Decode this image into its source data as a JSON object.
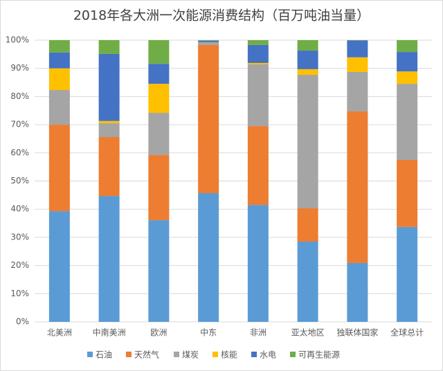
{
  "chart_data": {
    "type": "stacked-bar-100",
    "title": "2018年各大洲一次能源消费结构（百万吨油当量）",
    "categories": [
      "北美洲",
      "中南美洲",
      "欧洲",
      "中东",
      "非洲",
      "亚太地区",
      "独联体国家",
      "全球总计"
    ],
    "series": [
      {
        "name": "石油",
        "color": "#5b9bd5",
        "values": [
          39.3,
          44.7,
          36.1,
          45.7,
          41.5,
          28.5,
          20.9,
          33.7
        ]
      },
      {
        "name": "天然气",
        "color": "#ed7d31",
        "values": [
          30.7,
          20.9,
          23.1,
          52.6,
          28.0,
          11.8,
          53.8,
          23.8
        ]
      },
      {
        "name": "煤炭",
        "color": "#a5a5a5",
        "values": [
          12.3,
          4.9,
          15.0,
          1.0,
          21.9,
          47.4,
          14.0,
          27.0
        ]
      },
      {
        "name": "核能",
        "color": "#ffc000",
        "values": [
          7.7,
          0.8,
          10.3,
          0,
          0.5,
          2.0,
          5.2,
          4.4
        ]
      },
      {
        "name": "水电",
        "color": "#4472c4",
        "values": [
          5.6,
          23.8,
          7.1,
          0.5,
          6.4,
          6.6,
          6.0,
          6.9
        ]
      },
      {
        "name": "可再生能源",
        "color": "#70ad47",
        "values": [
          4.4,
          4.9,
          8.4,
          0.2,
          1.7,
          3.7,
          0.1,
          4.2
        ]
      }
    ],
    "ylim": [
      0,
      100
    ],
    "yticks": [
      {
        "value": 0,
        "label": "0%"
      },
      {
        "value": 10,
        "label": "10%"
      },
      {
        "value": 20,
        "label": "20%"
      },
      {
        "value": 30,
        "label": "30%"
      },
      {
        "value": 40,
        "label": "40%"
      },
      {
        "value": 50,
        "label": "50%"
      },
      {
        "value": 60,
        "label": "60%"
      },
      {
        "value": 70,
        "label": "70%"
      },
      {
        "value": 80,
        "label": "80%"
      },
      {
        "value": 90,
        "label": "90%"
      },
      {
        "value": 100,
        "label": "100%"
      }
    ],
    "grid": true,
    "legend": "bottom"
  }
}
